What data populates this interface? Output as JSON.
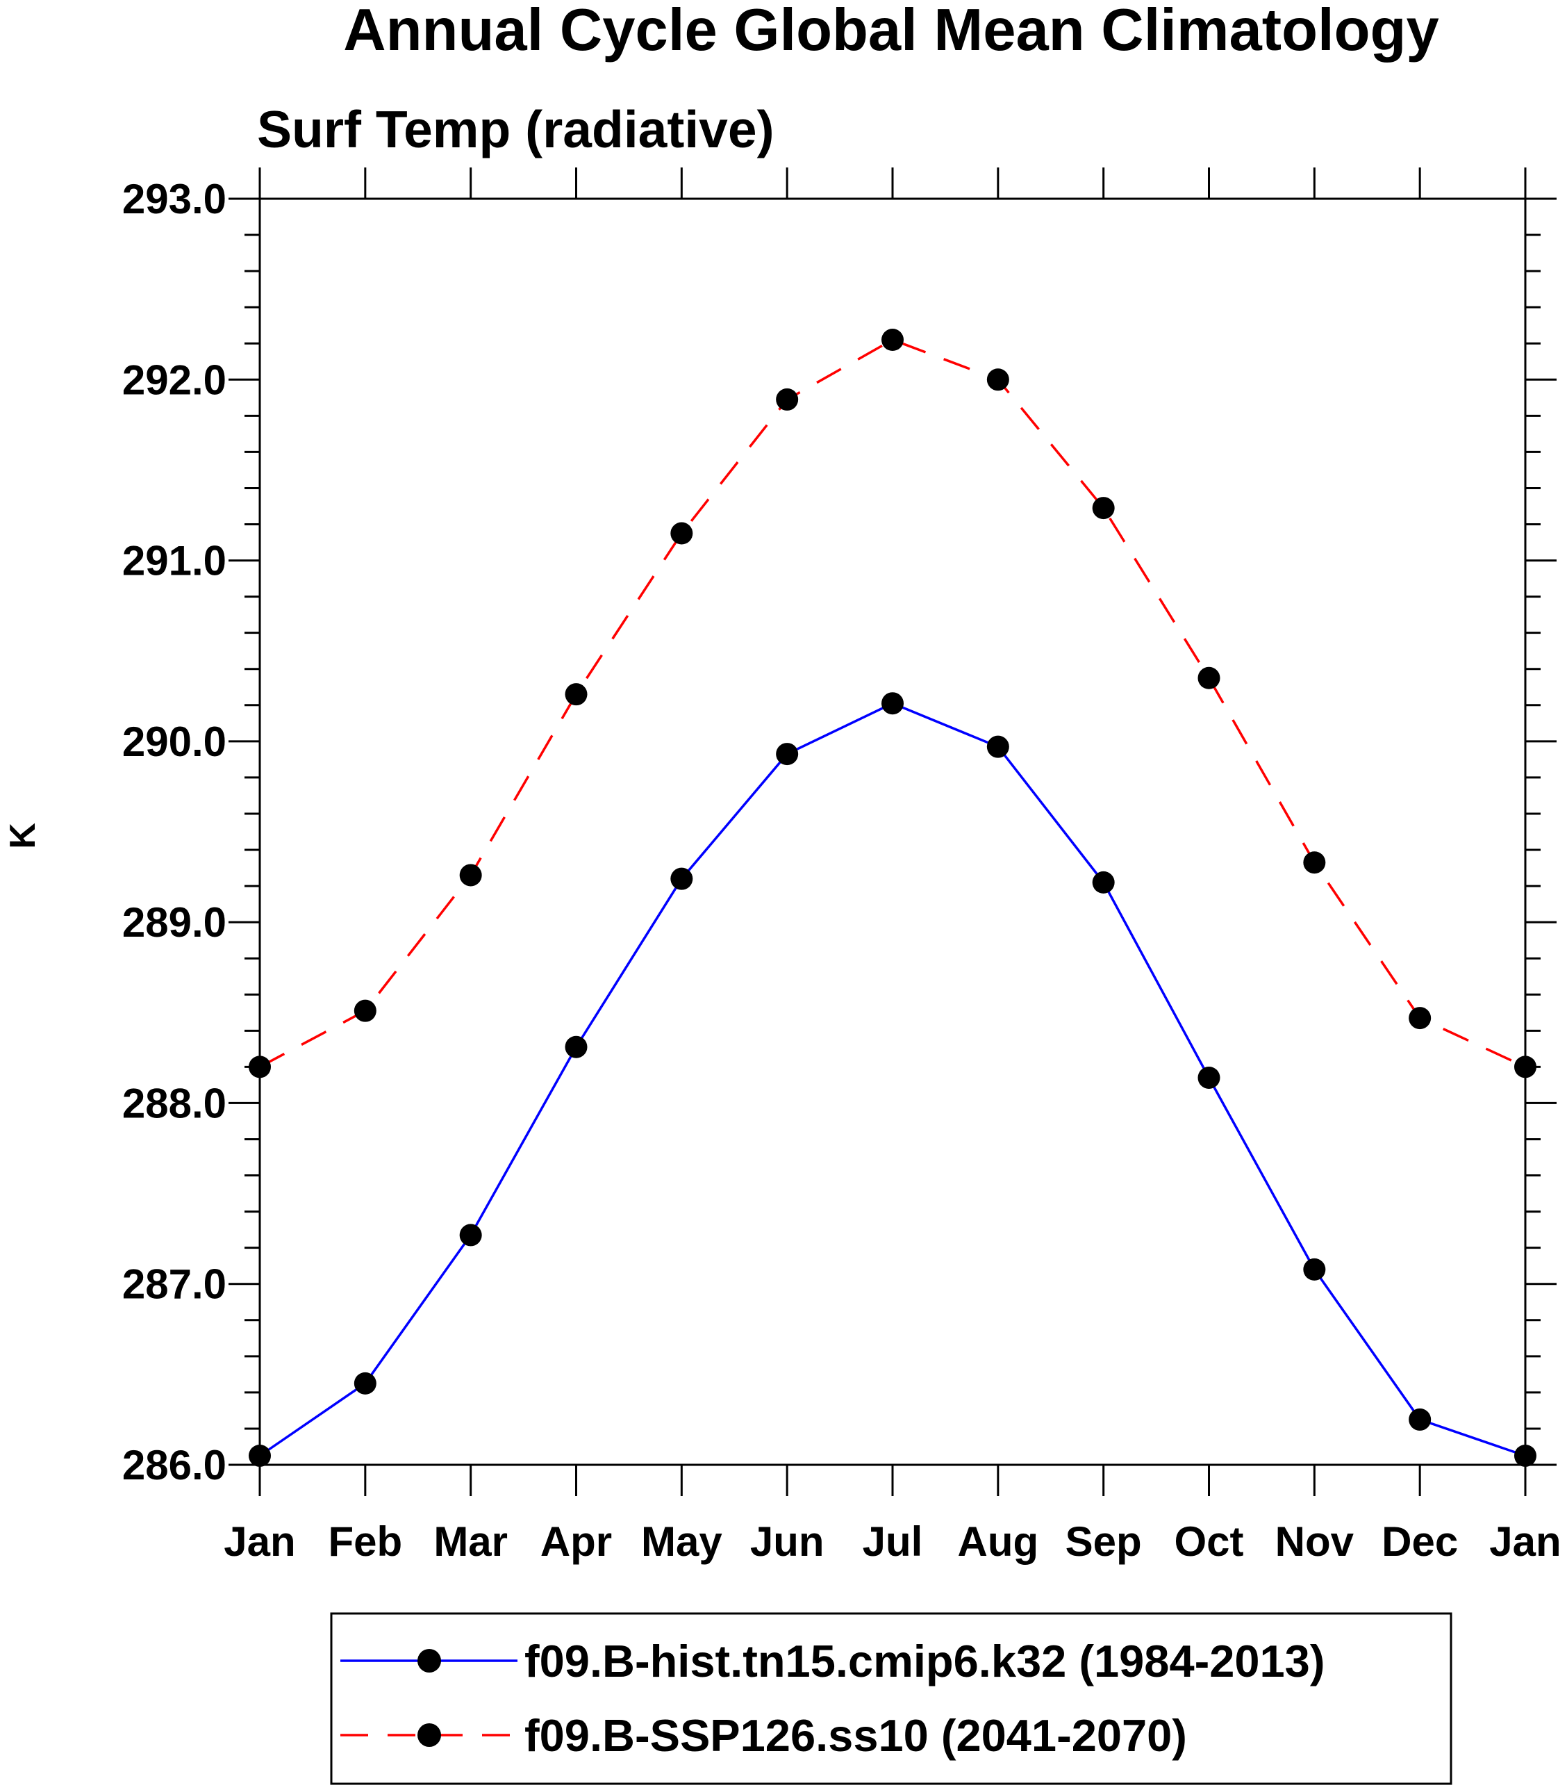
{
  "chart_data": {
    "type": "line",
    "title": "Annual Cycle Global Mean Climatology",
    "subtitle": "Surf Temp (radiative)",
    "xlabel": "",
    "ylabel": "K",
    "ylim": [
      286.0,
      293.0
    ],
    "yticks": [
      286.0,
      287.0,
      288.0,
      289.0,
      290.0,
      291.0,
      292.0,
      293.0
    ],
    "ytick_labels": [
      "286.0",
      "287.0",
      "288.0",
      "289.0",
      "290.0",
      "291.0",
      "292.0",
      "293.0"
    ],
    "y_minor_step": 0.2,
    "categories": [
      "Jan",
      "Feb",
      "Mar",
      "Apr",
      "May",
      "Jun",
      "Jul",
      "Aug",
      "Sep",
      "Oct",
      "Nov",
      "Dec",
      "Jan"
    ],
    "grid": false,
    "legend_position": "bottom",
    "series": [
      {
        "name": "f09.B-hist.tn15.cmip6.k32 (1984-2013)",
        "color": "#0000ff",
        "line_style": "solid",
        "marker": "filled-circle",
        "marker_color": "#000000",
        "values": [
          286.05,
          286.45,
          287.27,
          288.31,
          289.24,
          289.93,
          290.21,
          289.97,
          289.22,
          288.14,
          287.08,
          286.25,
          286.05
        ]
      },
      {
        "name": "f09.B-SSP126.ss10 (2041-2070)",
        "color": "#ff0000",
        "line_style": "dashed",
        "marker": "filled-circle",
        "marker_color": "#000000",
        "values": [
          288.2,
          288.51,
          289.26,
          290.26,
          291.15,
          291.89,
          292.22,
          292.0,
          291.29,
          290.35,
          289.33,
          288.47,
          288.2
        ]
      }
    ]
  }
}
